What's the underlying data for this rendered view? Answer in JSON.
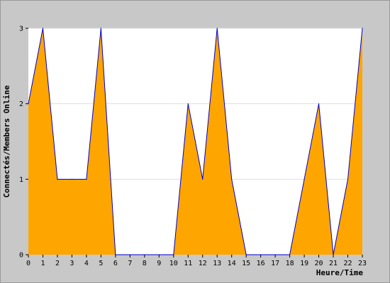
{
  "chart_data": {
    "type": "area",
    "title": "",
    "xlabel": "Heure/Time",
    "ylabel": "Connectés/Members Online",
    "x": [
      0,
      1,
      2,
      3,
      4,
      5,
      6,
      7,
      8,
      9,
      10,
      11,
      12,
      13,
      14,
      15,
      16,
      17,
      18,
      19,
      20,
      21,
      22,
      23
    ],
    "x_tick_labels": [
      "0",
      "1",
      "2",
      "3",
      "4",
      "5",
      "6",
      "7",
      "8",
      "9",
      "10",
      "11",
      "12",
      "13",
      "14",
      "15",
      "16",
      "17",
      "18",
      "19",
      "20",
      "21",
      "22",
      "23"
    ],
    "series": [
      {
        "values": [
          2,
          3,
          1,
          1,
          1,
          3,
          0,
          0,
          0,
          0,
          0,
          2,
          1,
          3,
          1,
          0,
          0,
          0,
          0,
          1,
          2,
          0,
          1,
          3
        ]
      }
    ],
    "xlim": [
      0,
      23
    ],
    "ylim": [
      0,
      3
    ],
    "y_ticks": [
      0,
      1,
      2,
      3
    ],
    "y_tick_labels": [
      "0",
      "1",
      "2",
      "3"
    ],
    "grid": true,
    "legend": "none",
    "colors": {
      "fill": "#ffa500",
      "line": "#0000cc",
      "plot_background": "#ffffff",
      "frame_background": "#c8c8c8",
      "grid": "#dddddd"
    }
  }
}
